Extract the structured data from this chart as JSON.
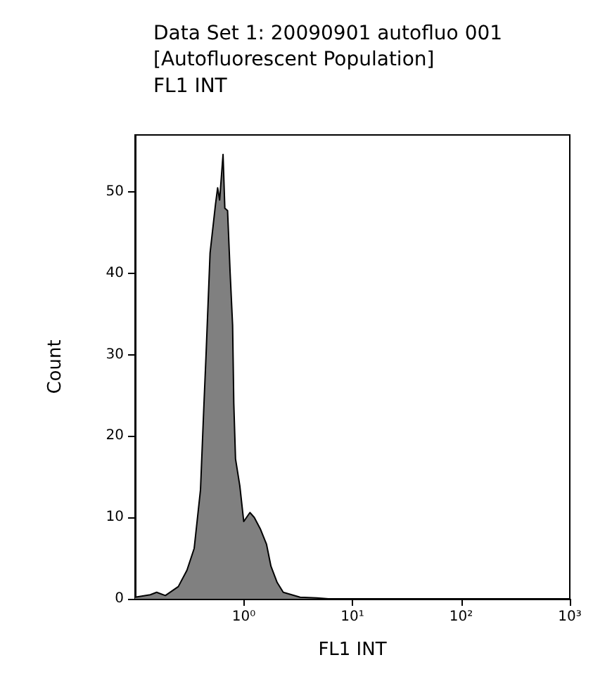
{
  "chart_data": {
    "type": "area",
    "title": "Data Set 1: 20090901 autofluo 001",
    "subtitle": "[Autofluorescent Population]\nFL1 INT",
    "xlabel": "FL1 INT",
    "ylabel": "Count",
    "log": "x",
    "grid": false,
    "marker": "none",
    "xlim": [
      0.1,
      1000
    ],
    "xticks": [
      {
        "value": 1,
        "label": "10⁰"
      },
      {
        "value": 10,
        "label": "10¹"
      },
      {
        "value": 100,
        "label": "10²"
      },
      {
        "value": 1000,
        "label": "10³"
      }
    ],
    "ylim": [
      0,
      57
    ],
    "yticks": [
      0,
      10,
      20,
      30,
      40,
      50
    ],
    "series": [
      {
        "color": "#808080",
        "x": [
          0.1,
          0.138,
          0.158,
          0.19,
          0.25,
          0.3,
          0.35,
          0.4,
          0.43,
          0.45,
          0.49,
          0.55,
          0.575,
          0.6,
          0.645,
          0.67,
          0.71,
          0.75,
          0.79,
          0.81,
          0.84,
          0.92,
          1.0,
          1.14,
          1.25,
          1.42,
          1.62,
          1.78,
          2.03,
          2.31,
          3.3,
          4.7,
          6
        ],
        "values": [
          0.2,
          0.5,
          0.8,
          0.4,
          1.5,
          3.5,
          6.2,
          13.4,
          23.8,
          30,
          42.5,
          48.5,
          50.5,
          49,
          54.6,
          48,
          47.7,
          40,
          33.6,
          24,
          17.2,
          13.9,
          9.5,
          10.6,
          10,
          8.6,
          6.7,
          4,
          2,
          0.8,
          0.2,
          0.1,
          0
        ]
      }
    ]
  }
}
